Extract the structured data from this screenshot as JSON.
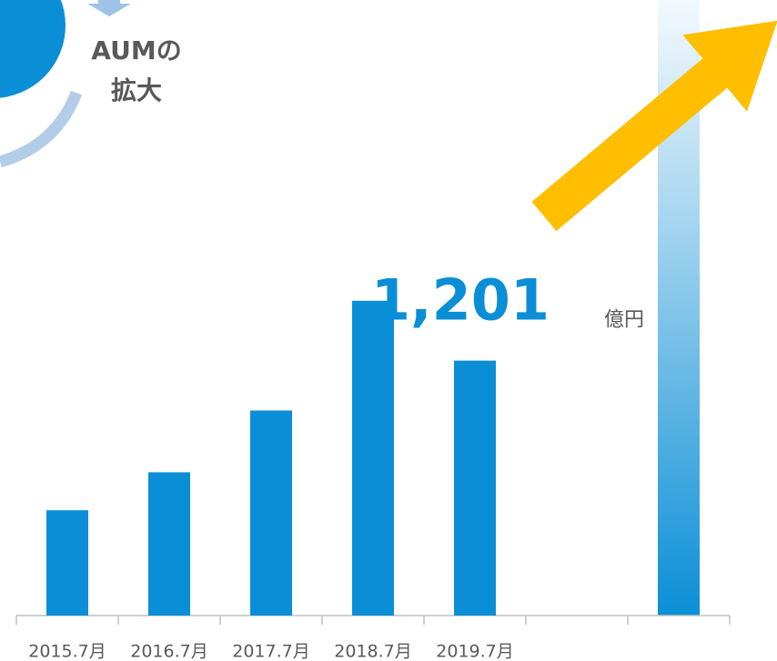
{
  "chart_data": {
    "type": "bar",
    "title": "AUMの拡大",
    "title_lines": [
      "AUMの",
      "拡大"
    ],
    "categories": [
      "2015.7月",
      "2016.7月",
      "2017.7月",
      "2018.7月",
      "2019.7月",
      null,
      null
    ],
    "values": [
      496,
      675,
      966,
      1483,
      1201,
      null,
      null
    ],
    "value_labels": [
      null,
      null,
      null,
      null,
      "1,201",
      null,
      null
    ],
    "value_unit": "億円",
    "color": "#0a8fd6",
    "ylim": [
      0,
      2900
    ]
  }
}
